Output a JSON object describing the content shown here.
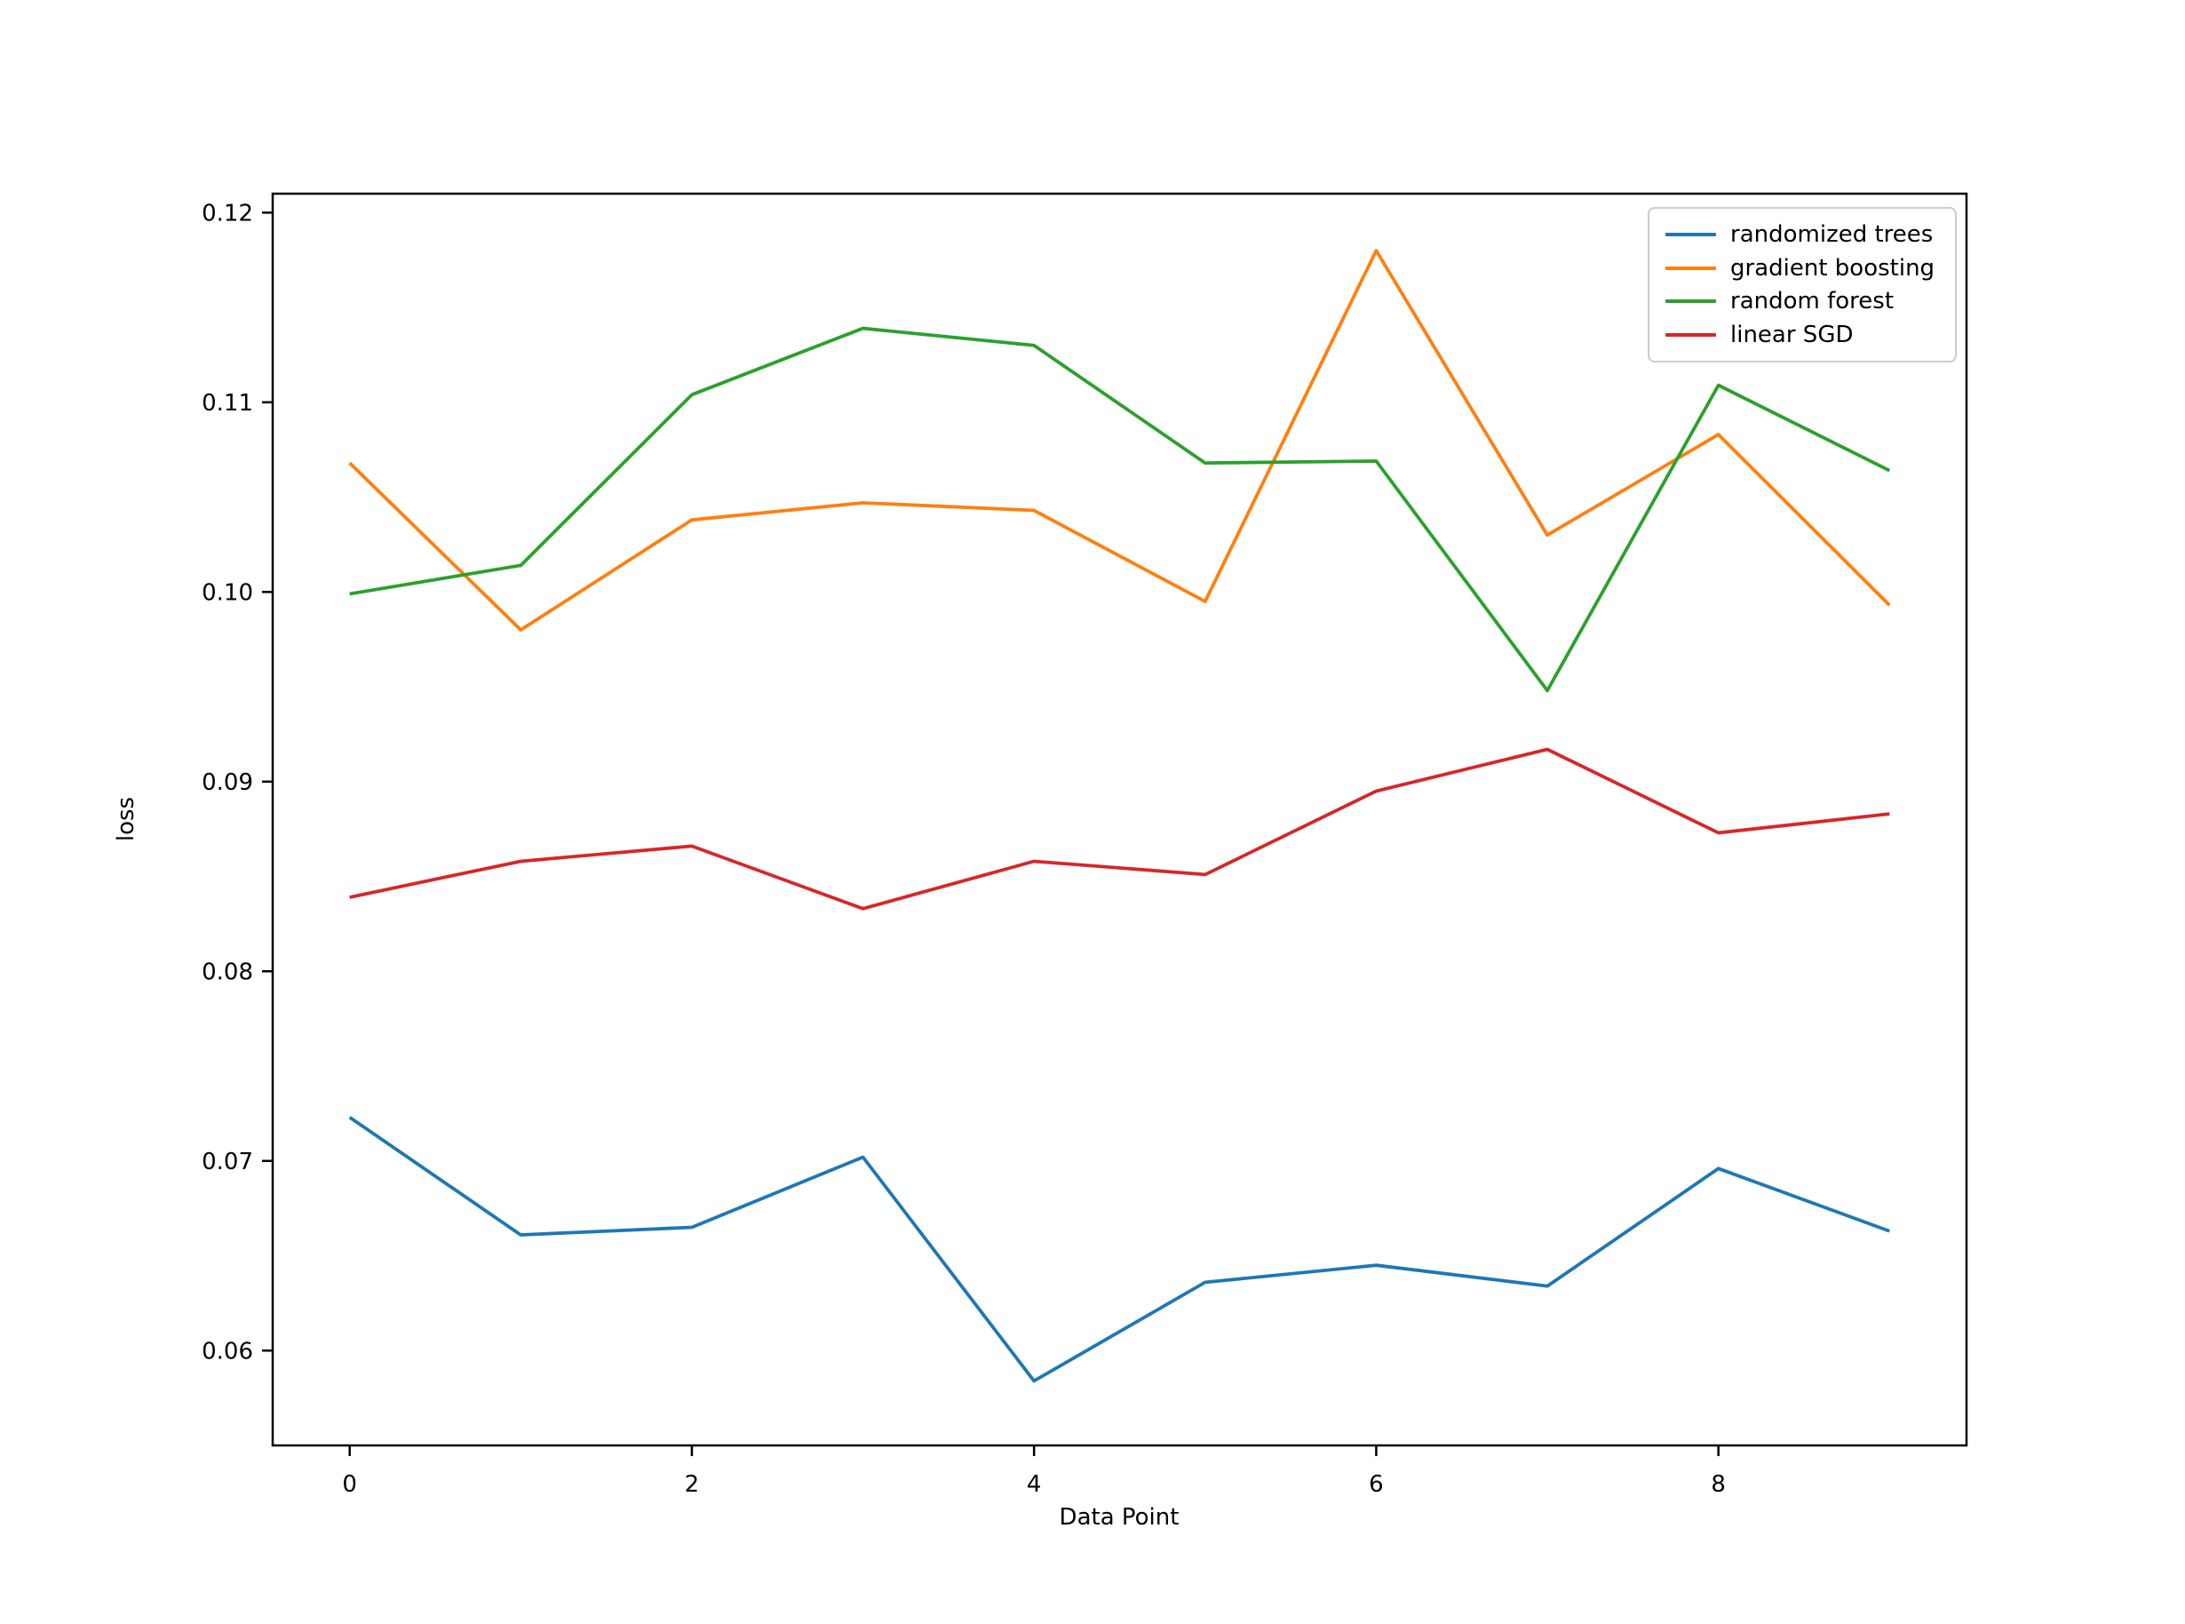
{
  "figure": {
    "background": "#ffffff"
  },
  "chart_data": {
    "type": "line",
    "title": "",
    "xlabel": "Data Point",
    "ylabel": "loss",
    "x": [
      0,
      1,
      2,
      3,
      4,
      5,
      6,
      7,
      8,
      9
    ],
    "series": [
      {
        "name": "randomized trees",
        "color": "#1f77b4",
        "values": [
          0.0723,
          0.0661,
          0.0665,
          0.0702,
          0.0584,
          0.0636,
          0.0645,
          0.0634,
          0.0696,
          0.0663
        ]
      },
      {
        "name": "gradient boosting",
        "color": "#ff7f0e",
        "values": [
          0.1068,
          0.098,
          0.1038,
          0.1047,
          0.1043,
          0.0995,
          0.118,
          0.103,
          0.1083,
          0.0993
        ]
      },
      {
        "name": "random forest",
        "color": "#2ca02c",
        "values": [
          0.0999,
          0.1014,
          0.1104,
          0.1139,
          0.113,
          0.1068,
          0.1069,
          0.0948,
          0.1109,
          0.1064
        ]
      },
      {
        "name": "linear SGD",
        "color": "#d62728",
        "values": [
          0.0839,
          0.0858,
          0.0866,
          0.0833,
          0.0858,
          0.0851,
          0.0895,
          0.0917,
          0.0873,
          0.0883
        ]
      }
    ],
    "xlim": [
      -0.45,
      9.45
    ],
    "ylim": [
      0.055,
      0.121
    ],
    "xticks": [
      0,
      2,
      4,
      6,
      8
    ],
    "xtick_labels": [
      "0",
      "2",
      "4",
      "6",
      "8"
    ],
    "yticks": [
      0.06,
      0.07,
      0.08,
      0.09,
      0.1,
      0.11,
      0.12
    ],
    "ytick_labels": [
      "0.06",
      "0.07",
      "0.08",
      "0.09",
      "0.10",
      "0.11",
      "0.12"
    ],
    "grid": false,
    "legend_position": "upper right",
    "axis_color": "#000000",
    "line_width": 3.8
  }
}
